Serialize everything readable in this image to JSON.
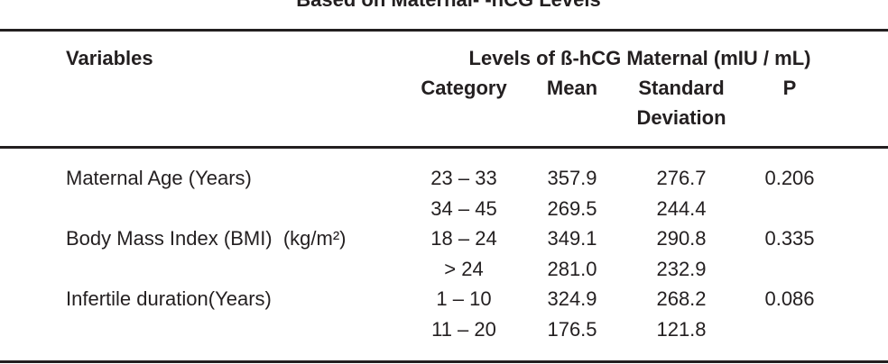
{
  "title": "Based on Maternal- -hCG Levels",
  "table": {
    "header": {
      "variables": "Variables",
      "group": "Levels of ß-hCG Maternal (mIU / mL)",
      "columns": [
        "Category",
        "Mean",
        "Standard Deviation",
        "P"
      ]
    },
    "groups": [
      {
        "variable": "Maternal Age (Years)",
        "p": "0.206",
        "rows": [
          [
            "23 – 33",
            "357.9",
            "276.7"
          ],
          [
            "34 – 45",
            "269.5",
            "244.4"
          ]
        ]
      },
      {
        "variable": "Body Mass Index (BMI)  (kg/m²)",
        "p": "0.335",
        "rows": [
          [
            "18 – 24",
            "349.1",
            "290.8"
          ],
          [
            "> 24",
            "281.0",
            "232.9"
          ]
        ]
      },
      {
        "variable": "Infertile duration(Years)",
        "p": "0.086",
        "rows": [
          [
            "1 – 10",
            "324.9",
            "268.2"
          ],
          [
            "11 – 20",
            "176.5",
            "121.8"
          ]
        ]
      }
    ]
  }
}
